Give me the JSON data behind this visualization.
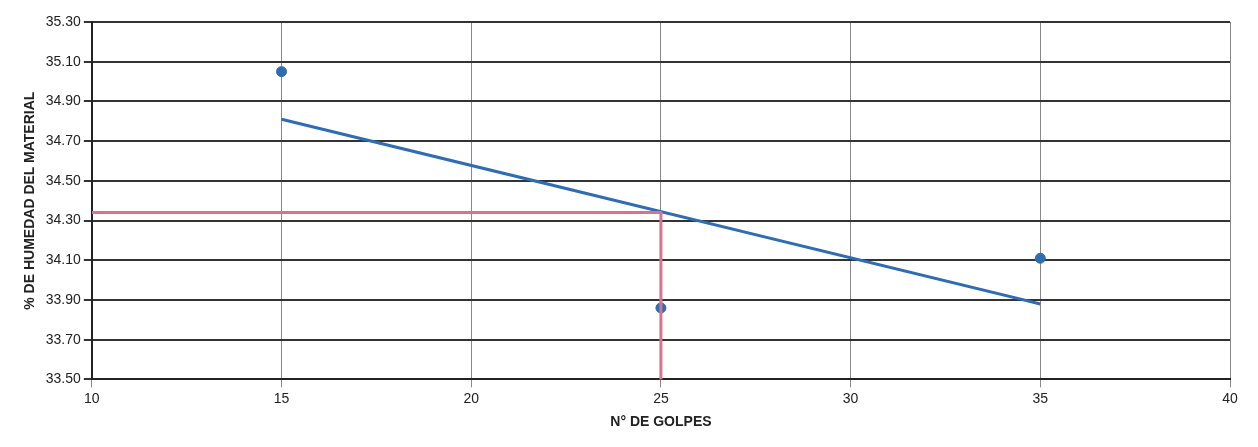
{
  "chart_data": {
    "type": "scatter",
    "xlabel": "N° DE GOLPES",
    "ylabel": "% DE HUMEDAD DEL MATERIAL",
    "xlim": [
      10,
      40
    ],
    "xticks": [
      10,
      15,
      20,
      25,
      30,
      35,
      40
    ],
    "ylim": [
      33.5,
      35.3
    ],
    "yticks": [
      {
        "value": 33.5,
        "label": "33.50"
      },
      {
        "value": 33.7,
        "label": "33.70"
      },
      {
        "value": 33.9,
        "label": "33.90"
      },
      {
        "value": 34.1,
        "label": "34.10"
      },
      {
        "value": 34.3,
        "label": "34.30"
      },
      {
        "value": 34.5,
        "label": "34.50"
      },
      {
        "value": 34.7,
        "label": "34.70"
      },
      {
        "value": 34.9,
        "label": "34.90"
      },
      {
        "value": 35.1,
        "label": "35.10"
      },
      {
        "value": 35.3,
        "label": "35.30"
      }
    ],
    "grid": true,
    "legend": false,
    "series": [
      {
        "type": "line",
        "color": "#d9728e",
        "x": [
          10,
          25,
          25
        ],
        "values": [
          34.34,
          34.34,
          33.5
        ],
        "marker": "none"
      },
      {
        "type": "line",
        "color": "#2e6db4",
        "x": [
          15,
          35
        ],
        "values": [
          34.81,
          33.88
        ],
        "marker": "none"
      },
      {
        "type": "scatter",
        "color": "#2e6db4",
        "x": [
          15,
          25,
          35
        ],
        "values": [
          35.05,
          33.86,
          34.11
        ],
        "marker": "circle"
      }
    ]
  }
}
